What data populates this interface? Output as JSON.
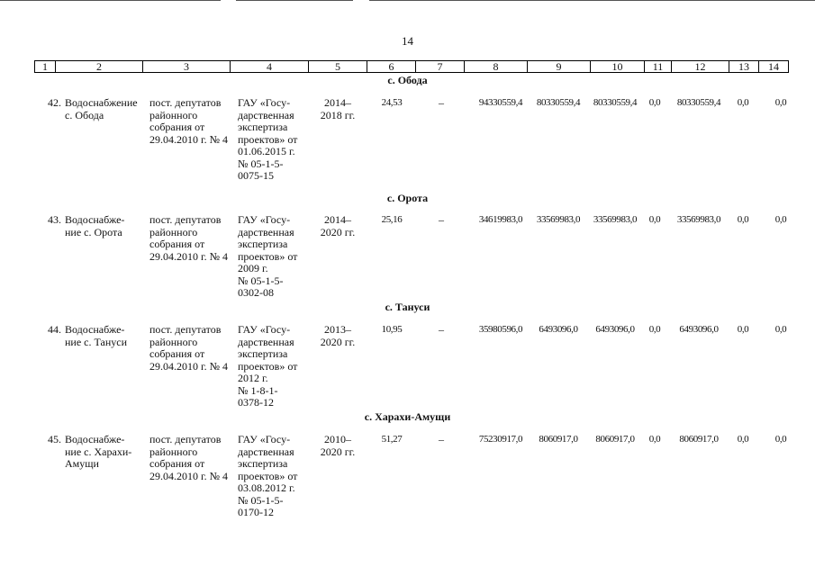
{
  "page_number": "14",
  "header_columns": [
    "1",
    "2",
    "3",
    "4",
    "5",
    "6",
    "7",
    "8",
    "9",
    "10",
    "11",
    "12",
    "13",
    "14"
  ],
  "sections": [
    {
      "title": "с. Обода",
      "row": {
        "no": "42.",
        "name": "Водоснабжение\nс. Обода",
        "basis": "пост. депутатов\nрайонного\nсобрания от\n29.04.2010 г. № 4",
        "expertise": "ГАУ «Госу-\nдарственная\nэкспертиза\nпроектов» от\n01.06.2015 г.\n№ 05-1-5-\n0075-15",
        "years": "2014–\n2018 гг.",
        "c6": "24,53",
        "c7": "–",
        "c8": "94330559,4",
        "c9": "80330559,4",
        "c10": "80330559,4",
        "c11": "0,0",
        "c12": "80330559,4",
        "c13": "0,0",
        "c14": "0,0"
      }
    },
    {
      "title": "с. Орота",
      "row": {
        "no": "43.",
        "name": "Водоснабже-\nние с. Орота",
        "basis": "пост. депутатов\nрайонного\nсобрания от\n29.04.2010 г. № 4",
        "expertise": "ГАУ «Госу-\nдарственная\nэкспертиза\nпроектов» от\n2009 г.\n№ 05-1-5-\n0302-08",
        "years": "2014–\n2020 гг.",
        "c6": "25,16",
        "c7": "–",
        "c8": "34619983,0",
        "c9": "33569983,0",
        "c10": "33569983,0",
        "c11": "0,0",
        "c12": "33569983,0",
        "c13": "0,0",
        "c14": "0,0"
      }
    },
    {
      "title": "с. Тануси",
      "row": {
        "no": "44.",
        "name": "Водоснабже-\nние с. Тануси",
        "basis": "пост. депутатов\nрайонного\nсобрания от\n29.04.2010 г. № 4",
        "expertise": "ГАУ «Госу-\nдарственная\nэкспертиза\nпроектов» от\n2012 г.\n№ 1-8-1-\n0378-12",
        "years": "2013–\n2020 гг.",
        "c6": "10,95",
        "c7": "–",
        "c8": "35980596,0",
        "c9": "6493096,0",
        "c10": "6493096,0",
        "c11": "0,0",
        "c12": "6493096,0",
        "c13": "0,0",
        "c14": "0,0"
      }
    },
    {
      "title": "с. Харахи-Амущи",
      "row": {
        "no": "45.",
        "name": "Водоснабже-\nние с. Харахи-\nАмущи",
        "basis": "пост. депутатов\nрайонного\nсобрания от\n29.04.2010 г. № 4",
        "expertise": "ГАУ «Госу-\nдарственная\nэкспертиза\nпроектов» от\n03.08.2012 г.\n№ 05-1-5-\n0170-12",
        "years": "2010–\n2020 гг.",
        "c6": "51,27",
        "c7": "–",
        "c8": "75230917,0",
        "c9": "8060917,0",
        "c10": "8060917,0",
        "c11": "0,0",
        "c12": "8060917,0",
        "c13": "0,0",
        "c14": "0,0"
      }
    }
  ]
}
